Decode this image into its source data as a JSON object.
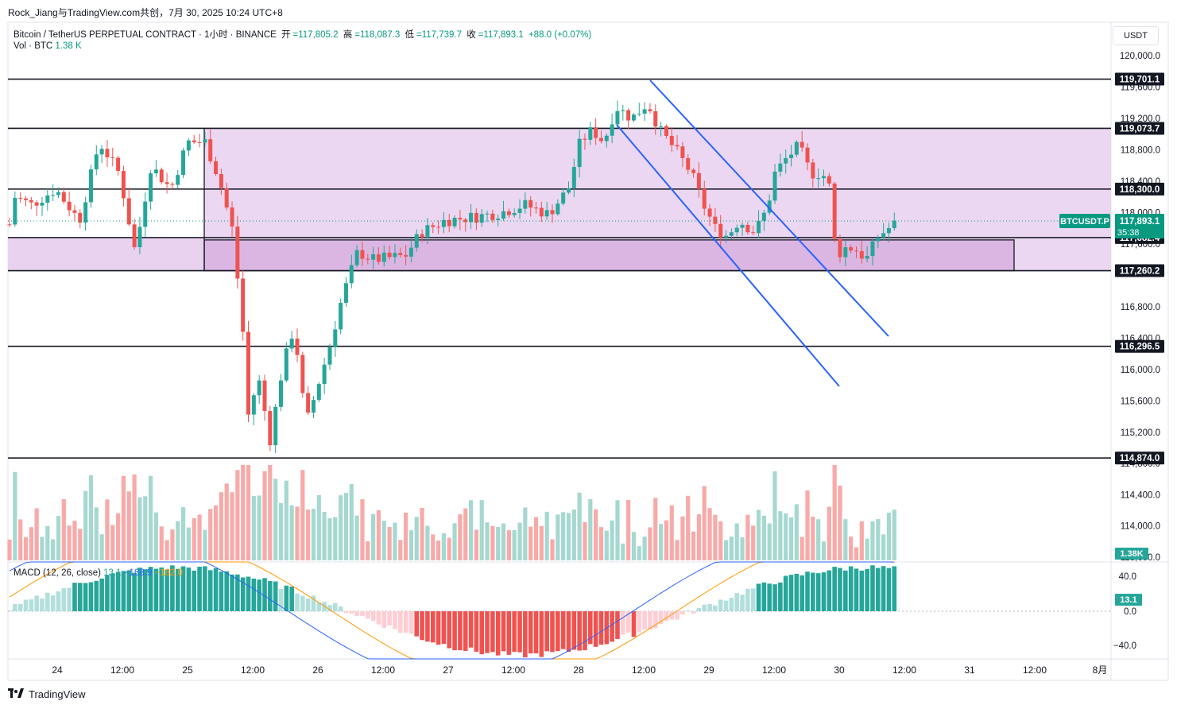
{
  "header": {
    "author_line": "Rock_Jiang与TradingView.com共创，7月 30, 2025 10:24 UTC+8"
  },
  "legend": {
    "symbol": "Bitcoin / TetherUS PERPETUAL CONTRACT · 1小时 · BINANCE",
    "open_label": "开",
    "open_value": "=117,805.2",
    "high_label": "高",
    "high_value": "=118,087.3",
    "low_label": "低",
    "low_value": "=117,739.7",
    "close_label": "收",
    "close_value": "=117,893.1",
    "change": "+88.0 (+0.07%)"
  },
  "volume_legend": {
    "label": "Vol · BTC",
    "value": "1.38 K"
  },
  "macd_legend": {
    "label": "MACD (12, 26, close)",
    "v1": "13.1",
    "v2": "−168.9",
    "v3": "−182.0"
  },
  "currency_button": "USDT",
  "price_axis_labels": [
    "120,000.0",
    "119,600.0",
    "119,200.0",
    "118,800.0",
    "118,400.0",
    "118,000.0",
    "117,600.0",
    "116,800.0",
    "116,400.0",
    "116,000.0",
    "115,600.0",
    "115,200.0",
    "114,800.0",
    "114,400.0",
    "114,000.0",
    "113,600.0"
  ],
  "macd_axis_labels": [
    "40.0",
    "0.0",
    "−40.0"
  ],
  "time_axis_labels": [
    "24",
    "12:00",
    "25",
    "12:00",
    "26",
    "12:00",
    "27",
    "12:00",
    "28",
    "12:00",
    "29",
    "12:00",
    "30",
    "12:00",
    "31",
    "12:00",
    "8月"
  ],
  "horizontal_levels": [
    "119,701.1",
    "119,073.7",
    "118,300.0",
    "117,682.4",
    "117,260.2",
    "116,296.5",
    "114,874.0"
  ],
  "current_price": {
    "symbol": "BTCUSDT.P",
    "price": "117,893.1",
    "countdown": "35:38"
  },
  "volume_badge": "1.38K",
  "macd_badge": "13.1",
  "footer_logo": "TradingView",
  "colors": {
    "up": "#26a69a",
    "down": "#ef5350",
    "zone_fill": "#e7d0ee",
    "zone_dark": "#d8b0e0",
    "channel": "#2962ff",
    "macd_line": "#2962ff",
    "signal_line": "#ff9800",
    "badge": "#089981"
  },
  "chart_data": {
    "type": "candlestick",
    "title": "Bitcoin / TetherUS PERPETUAL CONTRACT · 1小时 · BINANCE",
    "ylim": [
      113600,
      120200
    ],
    "horizontal_levels": [
      119701.1,
      119073.7,
      118300.0,
      117682.4,
      117260.2,
      116296.5,
      114874.0
    ],
    "zones": [
      {
        "top": 119073.7,
        "bottom": 117260.2,
        "from": "25",
        "to": "end"
      },
      {
        "top": 117682.4,
        "bottom": 117260.2,
        "from": "start",
        "to": "31 00:00"
      }
    ],
    "channel": {
      "upper": [
        [
          27.83,
          119701
        ],
        [
          30.3,
          116550
        ]
      ],
      "lower": [
        [
          27.8,
          119100
        ],
        [
          29.0,
          115600
        ]
      ]
    },
    "last_price": 117893.1,
    "macd": {
      "params": "12, 26, close",
      "hist": 13.1,
      "macd": -168.9,
      "signal": -182.0
    },
    "volume_last": "1.38K"
  }
}
